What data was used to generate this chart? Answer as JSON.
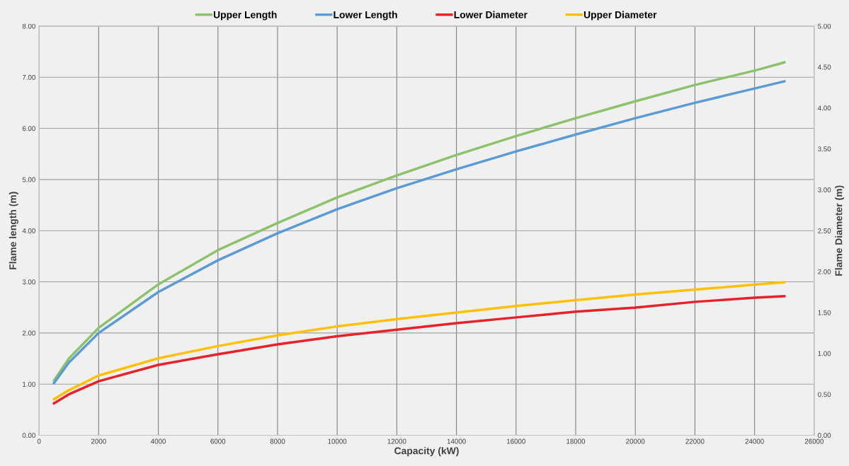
{
  "chart_data": {
    "type": "line",
    "xlabel": "Capacity (kW)",
    "ylabel": "Flame length (m)",
    "y2label": "Flame Diameter (m)",
    "x": [
      500,
      1000,
      2000,
      4000,
      6000,
      8000,
      10000,
      12000,
      14000,
      16000,
      18000,
      20000,
      22000,
      24000,
      25000
    ],
    "series": [
      {
        "name": "Upper Length",
        "color": "#8cc26b",
        "values": [
          1.07,
          1.5,
          2.1,
          2.95,
          3.62,
          4.15,
          4.65,
          5.08,
          5.48,
          5.85,
          6.2,
          6.53,
          6.85,
          7.13,
          7.29
        ]
      },
      {
        "name": "Lower Length",
        "color": "#5b9bd5",
        "values": [
          1.02,
          1.42,
          2.0,
          2.8,
          3.42,
          3.95,
          4.42,
          4.83,
          5.2,
          5.55,
          5.88,
          6.2,
          6.5,
          6.78,
          6.92
        ]
      },
      {
        "name": "Lower Diameter",
        "color": "#e8212b",
        "axis": "y2",
        "values": [
          0.39,
          0.5,
          0.66,
          0.86,
          0.99,
          1.11,
          1.21,
          1.29,
          1.37,
          1.44,
          1.51,
          1.56,
          1.63,
          1.68,
          1.7
        ]
      },
      {
        "name": "Upper Diameter",
        "color": "#ffc000",
        "axis": "y2",
        "values": [
          0.44,
          0.55,
          0.73,
          0.94,
          1.09,
          1.22,
          1.33,
          1.42,
          1.5,
          1.58,
          1.65,
          1.72,
          1.78,
          1.84,
          1.87
        ]
      }
    ],
    "xlim": [
      0,
      26000
    ],
    "xticks": [
      0,
      2000,
      4000,
      6000,
      8000,
      10000,
      12000,
      14000,
      16000,
      18000,
      20000,
      22000,
      24000,
      26000
    ],
    "ylim": [
      0,
      8
    ],
    "yticks": [
      {
        "value": 0,
        "label": "0.00"
      },
      {
        "value": 1,
        "label": "1.00"
      },
      {
        "value": 2,
        "label": "2.00"
      },
      {
        "value": 3,
        "label": "3.00"
      },
      {
        "value": 4,
        "label": "4.00"
      },
      {
        "value": 5,
        "label": "5.00"
      },
      {
        "value": 6,
        "label": "6.00"
      },
      {
        "value": 7,
        "label": "7.00"
      },
      {
        "value": 8,
        "label": "8.00"
      }
    ],
    "y2lim": [
      0,
      5
    ],
    "y2ticks": [
      {
        "value": 0,
        "label": "0.00"
      },
      {
        "value": 0.5,
        "label": "0.50"
      },
      {
        "value": 1,
        "label": "1.00"
      },
      {
        "value": 1.5,
        "label": "1.50"
      },
      {
        "value": 2,
        "label": "2.00"
      },
      {
        "value": 2.5,
        "label": "2.50"
      },
      {
        "value": 3,
        "label": "3.00"
      },
      {
        "value": 3.5,
        "label": "3.50"
      },
      {
        "value": 4,
        "label": "4.00"
      },
      {
        "value": 4.5,
        "label": "4.50"
      },
      {
        "value": 5,
        "label": "5.00"
      }
    ],
    "grid": true,
    "legend": "top",
    "marker": "none",
    "line_style": "solid"
  }
}
